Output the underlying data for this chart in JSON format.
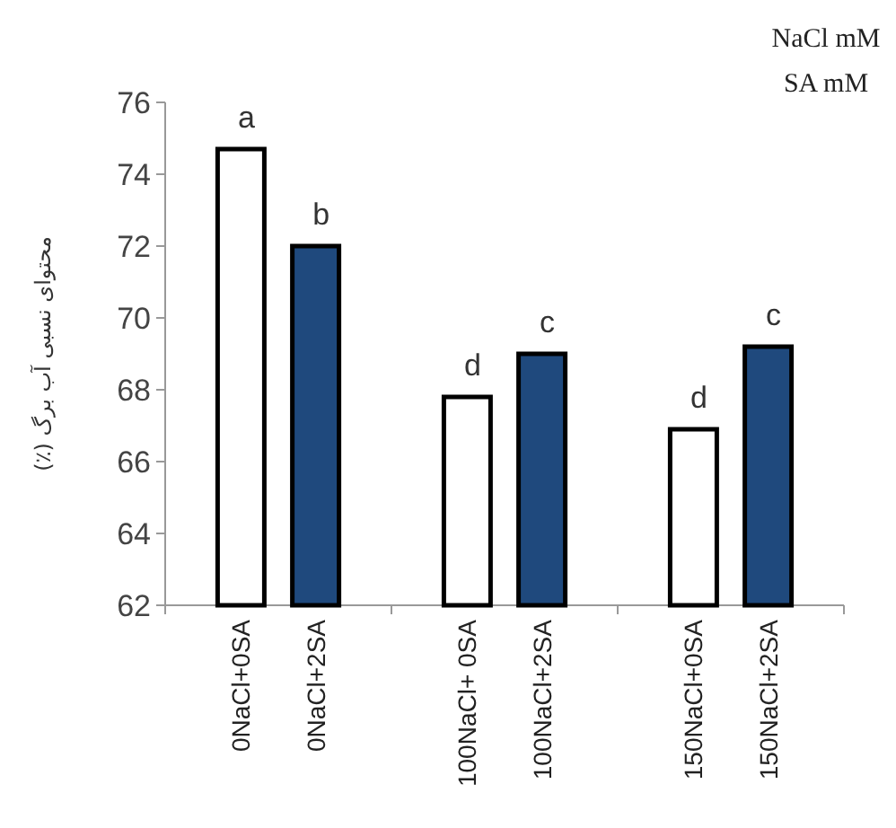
{
  "chart_data": {
    "type": "bar",
    "ylabel": "محتوای نسبی آب برگ (٪)",
    "categories": [
      "0NaCl+0SA",
      "0NaCl+2SA",
      "100NaCl+ 0SA",
      "100NaCl+2SA",
      "150NaCl+0SA",
      "150NaCl+2SA"
    ],
    "values": [
      74.7,
      72.0,
      67.8,
      69.0,
      66.9,
      69.2
    ],
    "colors": [
      "#ffffff",
      "#1f497d",
      "#ffffff",
      "#1f497d",
      "#ffffff",
      "#1f497d"
    ],
    "ylim": [
      62,
      76
    ],
    "yticks": [
      62,
      64,
      66,
      68,
      70,
      72,
      74,
      76
    ],
    "annotations": [
      {
        "text": "a",
        "x": "0NaCl+0SA",
        "y": 74.7
      },
      {
        "text": "b",
        "x": "0NaCl+2SA",
        "y": 72.0
      },
      {
        "text": "d",
        "x": "100NaCl+ 0SA",
        "y": 67.8
      },
      {
        "text": "c",
        "x": "100NaCl+2SA",
        "y": 69.0
      },
      {
        "text": "d",
        "x": "150NaCl+0SA",
        "y": 66.9
      },
      {
        "text": "c",
        "x": "150NaCl+2SA",
        "y": 69.2
      },
      "NaCl mM",
      "SA mM"
    ]
  }
}
